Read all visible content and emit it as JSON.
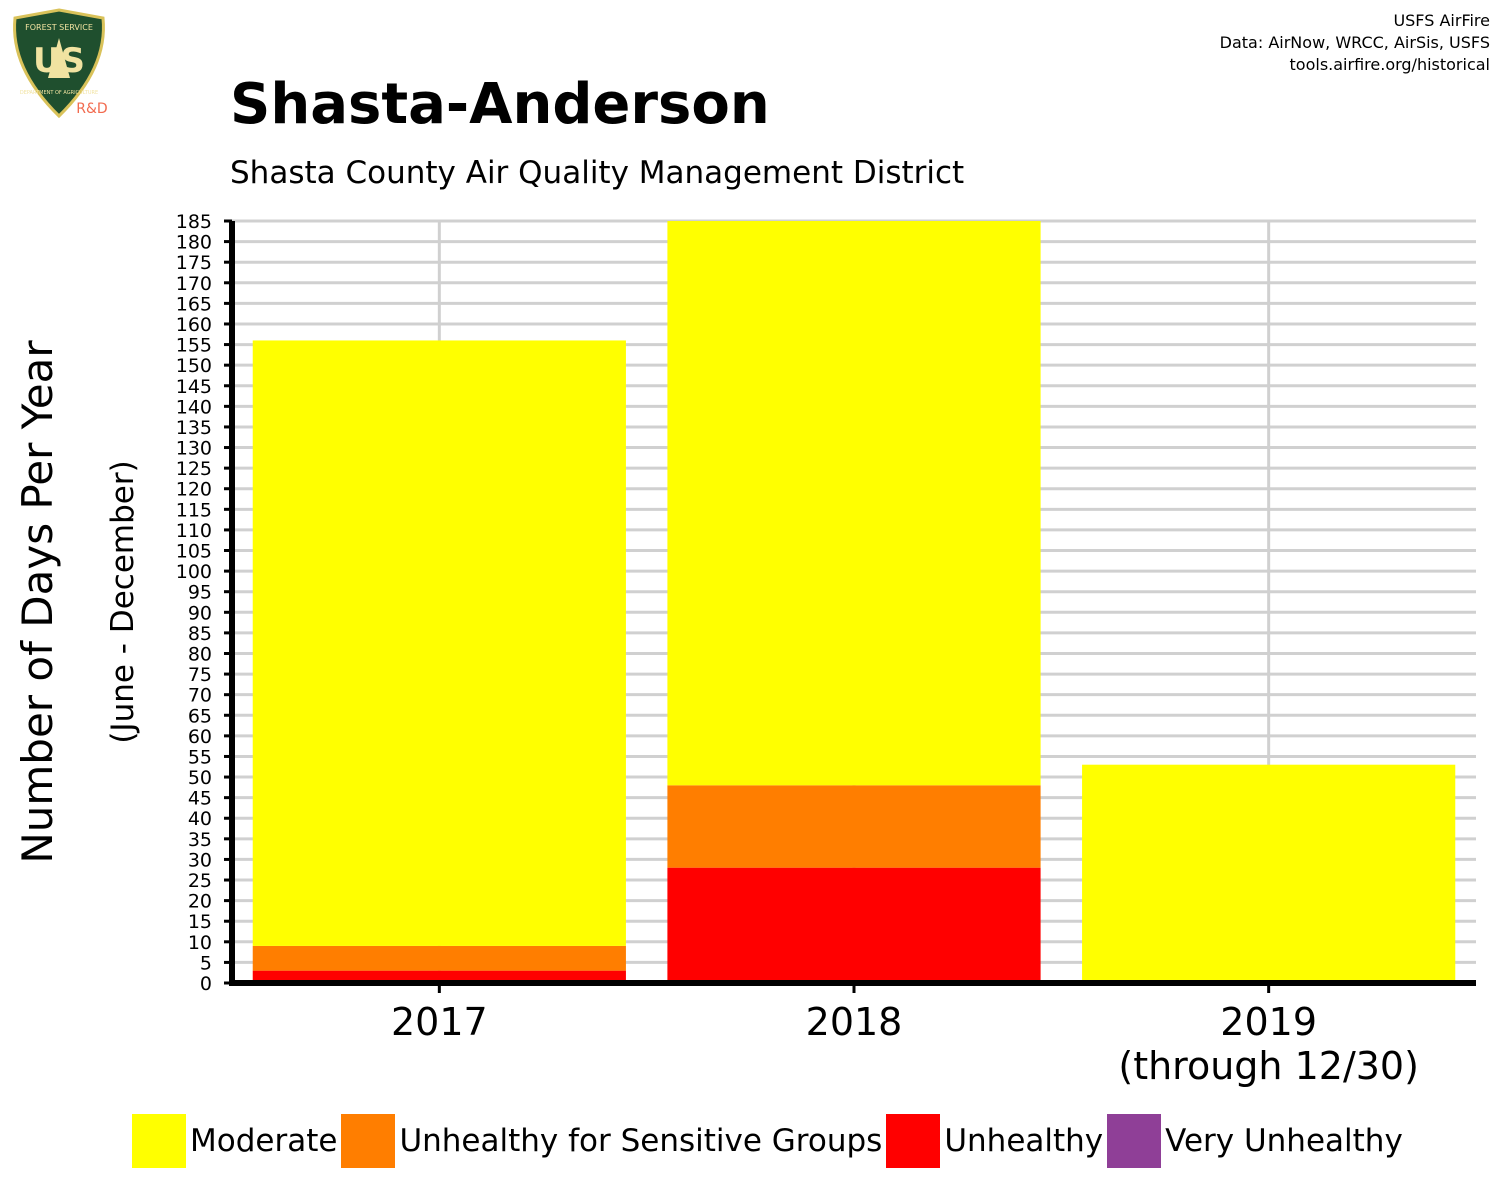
{
  "header": {
    "title": "Shasta-Anderson",
    "subtitle": "Shasta County Air Quality Management District",
    "credits": [
      "USFS AirFire",
      "Data: AirNow, WRCC, AirSis, USFS",
      "tools.airfire.org/historical"
    ]
  },
  "logo": {
    "icon": "usfs-shield-logo",
    "text_top": "FOREST SERVICE",
    "text_main": "US",
    "text_bottom": "DEPARTMENT OF AGRICULTURE",
    "text_badge": "R&D"
  },
  "chart_data": {
    "type": "bar",
    "stacked": true,
    "ylabel": "Number of Days Per Year",
    "ylabel2": "(June - December)",
    "ylim": [
      0,
      185
    ],
    "ytick_step": 5,
    "grid": true,
    "categories": [
      {
        "line1": "2017",
        "line2": ""
      },
      {
        "line1": "2018",
        "line2": ""
      },
      {
        "line1": "2019",
        "line2": "(through 12/30)"
      }
    ],
    "series": [
      {
        "name": "Unhealthy",
        "color": "#ff0000",
        "values": [
          3,
          28,
          0
        ]
      },
      {
        "name": "Unhealthy for Sensitive Groups",
        "color": "#ff7e00",
        "values": [
          6,
          20,
          0
        ]
      },
      {
        "name": "Moderate",
        "color": "#ffff00",
        "values": [
          147,
          137,
          53
        ]
      },
      {
        "name": "Very Unhealthy",
        "color": "#8f3f97",
        "values": [
          0,
          0,
          0
        ]
      }
    ]
  },
  "legend": [
    {
      "label": "Moderate",
      "color": "#ffff00"
    },
    {
      "label": "Unhealthy for Sensitive Groups",
      "color": "#ff7e00"
    },
    {
      "label": "Unhealthy",
      "color": "#ff0000"
    },
    {
      "label": "Very Unhealthy",
      "color": "#8f3f97"
    }
  ]
}
